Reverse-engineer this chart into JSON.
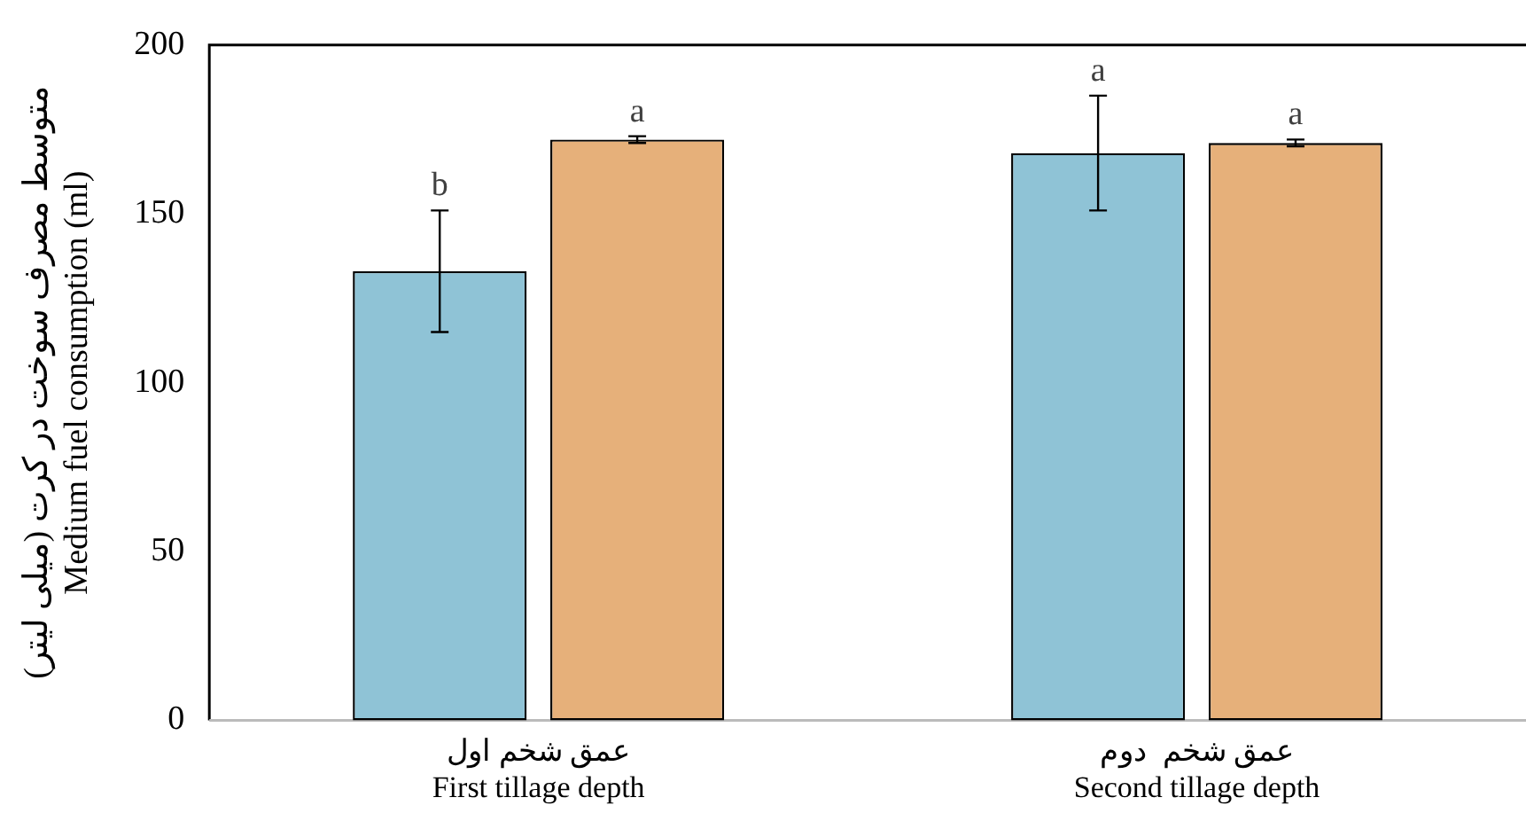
{
  "chart_data": {
    "type": "bar",
    "ylabel": "متوسط مصرف سوخت در کرت (میلی لیتر)\nMedium fuel consumption (ml)",
    "categories": [
      "عمق شخم اول\nFirst tillage depth",
      "عمق شخم  دوم\nSecond tillage depth"
    ],
    "series": [
      {
        "color": "#8fc3d6",
        "values": [
          133,
          168
        ],
        "errors": [
          18,
          17
        ]
      },
      {
        "color": "#e6b07a",
        "values": [
          172,
          171
        ],
        "errors": [
          1,
          1
        ]
      }
    ],
    "ylim": [
      0,
      200
    ],
    "yticks": [
      0,
      50,
      100,
      150,
      200
    ],
    "grid": false,
    "legend": false,
    "annotations": [
      "b",
      "a",
      "a",
      "a"
    ]
  }
}
